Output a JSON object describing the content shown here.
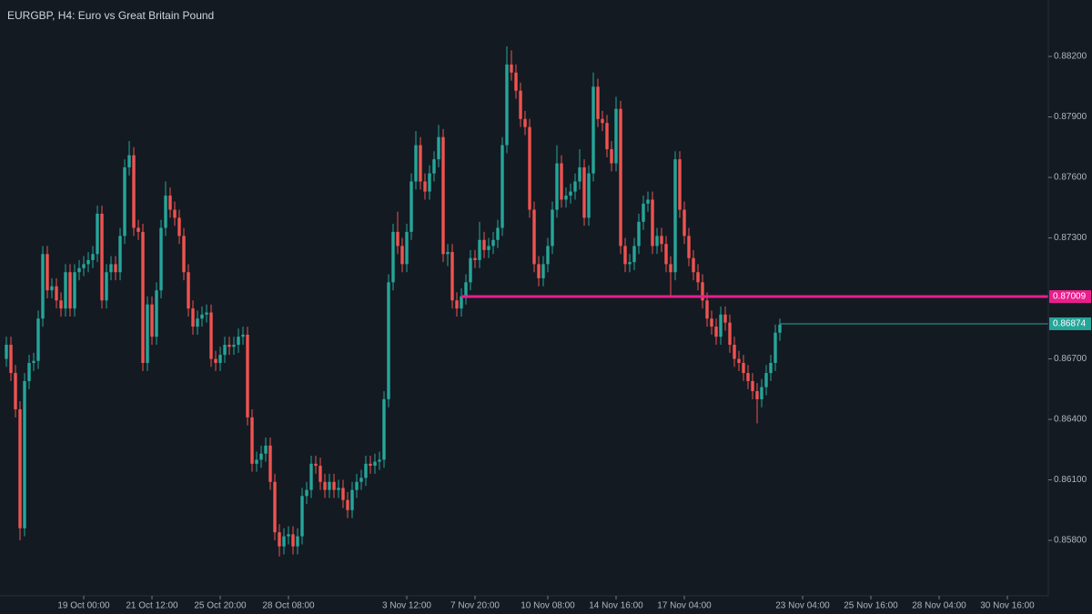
{
  "chart_data": {
    "type": "candlestick",
    "title": "EURGBP, H4: Euro vs Great Britain Pound",
    "up_color": "#26a69a",
    "down_color": "#ef5350",
    "x": [
      0,
      1,
      2,
      3,
      4,
      5,
      6,
      7,
      8,
      9,
      10,
      11,
      12,
      13,
      14,
      15,
      16,
      17,
      18,
      19,
      20,
      21,
      22,
      23,
      24,
      25,
      26,
      27,
      28,
      29,
      30,
      31,
      32,
      33,
      34,
      35,
      36,
      37,
      38,
      39,
      40,
      41,
      42,
      43,
      44,
      45,
      46,
      47,
      48,
      49,
      50,
      51,
      52,
      53,
      54,
      55,
      56,
      57,
      58,
      59,
      60,
      61,
      62,
      63,
      64,
      65,
      66,
      67,
      68,
      69,
      70,
      71,
      72,
      73,
      74,
      75,
      76,
      77,
      78,
      79,
      80,
      81,
      82,
      83,
      84,
      85,
      86,
      87,
      88,
      89,
      90,
      91,
      92,
      93,
      94,
      95,
      96,
      97,
      98,
      99,
      100,
      101,
      102,
      103,
      104,
      105,
      106,
      107,
      108,
      109,
      110,
      111,
      112,
      113,
      114,
      115,
      116,
      117,
      118,
      119,
      120,
      121,
      122,
      123,
      124,
      125,
      126,
      127,
      128,
      129,
      130,
      131,
      132,
      133,
      134,
      135,
      136,
      137,
      138,
      139,
      140,
      141,
      142,
      143,
      144,
      145,
      146,
      147,
      148,
      149,
      150,
      151,
      152,
      153,
      154,
      155,
      156,
      157,
      158,
      159,
      160,
      161,
      162,
      163,
      164,
      165,
      166,
      167,
      168,
      169,
      170
    ],
    "open": [
      0.867,
      0.8677,
      0.8663,
      0.8645,
      0.8586,
      0.8659,
      0.8668,
      0.8669,
      0.869,
      0.8722,
      0.8704,
      0.8706,
      0.8699,
      0.8695,
      0.8713,
      0.8695,
      0.8713,
      0.8715,
      0.8717,
      0.8719,
      0.8722,
      0.8742,
      0.8699,
      0.8713,
      0.8717,
      0.8713,
      0.8731,
      0.8765,
      0.8771,
      0.8735,
      0.8733,
      0.8668,
      0.8697,
      0.8681,
      0.8704,
      0.8735,
      0.8751,
      0.8744,
      0.874,
      0.8731,
      0.8713,
      0.8695,
      0.8686,
      0.869,
      0.8692,
      0.8693,
      0.867,
      0.8668,
      0.8672,
      0.8677,
      0.8676,
      0.8677,
      0.8681,
      0.8682,
      0.8641,
      0.8618,
      0.862,
      0.8623,
      0.8627,
      0.8609,
      0.8584,
      0.8577,
      0.8582,
      0.8583,
      0.8577,
      0.8582,
      0.8602,
      0.8605,
      0.8618,
      0.8617,
      0.8609,
      0.8605,
      0.8609,
      0.8605,
      0.8606,
      0.86,
      0.8595,
      0.8605,
      0.8609,
      0.8611,
      0.8618,
      0.8617,
      0.8619,
      0.862,
      0.865,
      0.8708,
      0.8733,
      0.8726,
      0.8717,
      0.8733,
      0.8758,
      0.8776,
      0.8758,
      0.8753,
      0.8762,
      0.8769,
      0.878,
      0.8722,
      0.8723,
      0.8699,
      0.8695,
      0.8701,
      0.8708,
      0.872,
      0.8719,
      0.8729,
      0.8724,
      0.8726,
      0.8729,
      0.8735,
      0.8776,
      0.8816,
      0.8812,
      0.8803,
      0.8789,
      0.8785,
      0.8744,
      0.8717,
      0.871,
      0.8717,
      0.8726,
      0.8744,
      0.8767,
      0.8749,
      0.8751,
      0.8753,
      0.8758,
      0.8765,
      0.874,
      0.8762,
      0.8805,
      0.8789,
      0.8787,
      0.8774,
      0.8767,
      0.8794,
      0.8726,
      0.8717,
      0.8718,
      0.8726,
      0.8738,
      0.8747,
      0.8749,
      0.8726,
      0.8731,
      0.8727,
      0.8717,
      0.8713,
      0.8769,
      0.8744,
      0.8731,
      0.872,
      0.8713,
      0.8708,
      0.8699,
      0.869,
      0.8686,
      0.8681,
      0.8692,
      0.8688,
      0.8677,
      0.867,
      0.8668,
      0.8663,
      0.8659,
      0.8654,
      0.865,
      0.8656,
      0.8663,
      0.8668,
      0.8683
    ],
    "high": [
      0.8681,
      0.8681,
      0.8667,
      0.8649,
      0.8663,
      0.8672,
      0.8673,
      0.8694,
      0.8726,
      0.8726,
      0.871,
      0.871,
      0.8703,
      0.8717,
      0.8717,
      0.8717,
      0.8719,
      0.8721,
      0.8723,
      0.8726,
      0.8746,
      0.8746,
      0.8717,
      0.8721,
      0.8721,
      0.8735,
      0.8769,
      0.8778,
      0.8775,
      0.8739,
      0.8737,
      0.8701,
      0.8701,
      0.8708,
      0.8739,
      0.8758,
      0.8755,
      0.8748,
      0.8744,
      0.8735,
      0.8717,
      0.8699,
      0.8694,
      0.8696,
      0.8697,
      0.8697,
      0.8674,
      0.8676,
      0.8681,
      0.8681,
      0.8681,
      0.8685,
      0.8686,
      0.8686,
      0.8645,
      0.8624,
      0.8627,
      0.8631,
      0.8631,
      0.8613,
      0.8588,
      0.8586,
      0.8587,
      0.8587,
      0.8586,
      0.8606,
      0.8609,
      0.8622,
      0.8622,
      0.8621,
      0.8613,
      0.8613,
      0.8613,
      0.861,
      0.861,
      0.8604,
      0.8609,
      0.8613,
      0.8615,
      0.8622,
      0.8622,
      0.8623,
      0.8624,
      0.8654,
      0.8712,
      0.8737,
      0.8743,
      0.873,
      0.8737,
      0.8762,
      0.8783,
      0.878,
      0.8762,
      0.8766,
      0.8773,
      0.8786,
      0.8784,
      0.8727,
      0.8727,
      0.8703,
      0.8705,
      0.8712,
      0.8724,
      0.8724,
      0.8738,
      0.8733,
      0.873,
      0.8733,
      0.8739,
      0.878,
      0.8825,
      0.8823,
      0.8816,
      0.8807,
      0.8793,
      0.8789,
      0.8748,
      0.8721,
      0.8721,
      0.873,
      0.8748,
      0.8776,
      0.8771,
      0.8755,
      0.8757,
      0.8762,
      0.8774,
      0.8769,
      0.8766,
      0.8812,
      0.8809,
      0.8793,
      0.8791,
      0.8778,
      0.88,
      0.8798,
      0.873,
      0.8722,
      0.873,
      0.8742,
      0.8751,
      0.8753,
      0.8753,
      0.8735,
      0.8735,
      0.8731,
      0.8721,
      0.8773,
      0.8773,
      0.8748,
      0.8735,
      0.8724,
      0.8717,
      0.8712,
      0.8703,
      0.8694,
      0.869,
      0.8696,
      0.8696,
      0.8692,
      0.8681,
      0.8674,
      0.8672,
      0.8667,
      0.8663,
      0.8658,
      0.866,
      0.8667,
      0.8672,
      0.8687,
      0.869
    ],
    "low": [
      0.8666,
      0.8659,
      0.8641,
      0.858,
      0.8582,
      0.8655,
      0.8664,
      0.8665,
      0.8686,
      0.87,
      0.87,
      0.8695,
      0.8691,
      0.8691,
      0.8691,
      0.8691,
      0.8709,
      0.8711,
      0.8713,
      0.8715,
      0.8718,
      0.8695,
      0.8695,
      0.8709,
      0.8709,
      0.8709,
      0.8727,
      0.8761,
      0.8731,
      0.8729,
      0.8664,
      0.8664,
      0.8677,
      0.8677,
      0.87,
      0.8731,
      0.874,
      0.8736,
      0.8727,
      0.8709,
      0.8691,
      0.8682,
      0.8682,
      0.8686,
      0.8688,
      0.8666,
      0.8664,
      0.8664,
      0.8668,
      0.8672,
      0.8672,
      0.8673,
      0.8677,
      0.8637,
      0.8614,
      0.8614,
      0.8616,
      0.8619,
      0.8605,
      0.858,
      0.8572,
      0.8573,
      0.8578,
      0.8573,
      0.8573,
      0.8578,
      0.8598,
      0.8601,
      0.8613,
      0.8605,
      0.8601,
      0.8601,
      0.8601,
      0.8601,
      0.8596,
      0.8591,
      0.8591,
      0.8601,
      0.8605,
      0.8607,
      0.8613,
      0.8613,
      0.8615,
      0.8616,
      0.8646,
      0.8704,
      0.8722,
      0.8713,
      0.8713,
      0.8729,
      0.8754,
      0.8754,
      0.8749,
      0.8749,
      0.8758,
      0.8765,
      0.8718,
      0.8716,
      0.8695,
      0.8691,
      0.8691,
      0.8697,
      0.8704,
      0.8715,
      0.8715,
      0.872,
      0.872,
      0.8722,
      0.8725,
      0.8731,
      0.8772,
      0.8808,
      0.8799,
      0.8785,
      0.8781,
      0.874,
      0.8713,
      0.8706,
      0.8706,
      0.8713,
      0.8722,
      0.874,
      0.8745,
      0.8745,
      0.8747,
      0.8749,
      0.8754,
      0.8736,
      0.8736,
      0.8758,
      0.8785,
      0.8783,
      0.877,
      0.8763,
      0.8763,
      0.8722,
      0.8713,
      0.8713,
      0.8714,
      0.8722,
      0.8734,
      0.8743,
      0.8722,
      0.8722,
      0.8723,
      0.8713,
      0.8701,
      0.8709,
      0.874,
      0.8727,
      0.8716,
      0.8709,
      0.8704,
      0.8695,
      0.8686,
      0.8682,
      0.8677,
      0.8677,
      0.8684,
      0.8673,
      0.8666,
      0.8664,
      0.8659,
      0.8655,
      0.865,
      0.8638,
      0.8646,
      0.8652,
      0.8659,
      0.8664,
      0.8679
    ],
    "close": [
      0.8677,
      0.8663,
      0.8645,
      0.8586,
      0.8659,
      0.8668,
      0.8669,
      0.869,
      0.8722,
      0.8704,
      0.8706,
      0.8699,
      0.8695,
      0.8713,
      0.8695,
      0.8713,
      0.8715,
      0.8717,
      0.8719,
      0.8722,
      0.8742,
      0.8699,
      0.8713,
      0.8717,
      0.8713,
      0.8731,
      0.8765,
      0.8771,
      0.8735,
      0.8733,
      0.8668,
      0.8697,
      0.8681,
      0.8704,
      0.8735,
      0.8751,
      0.8744,
      0.874,
      0.8731,
      0.8713,
      0.8695,
      0.8686,
      0.869,
      0.8692,
      0.8693,
      0.867,
      0.8668,
      0.8672,
      0.8677,
      0.8676,
      0.8677,
      0.8681,
      0.8682,
      0.8641,
      0.8618,
      0.862,
      0.8623,
      0.8627,
      0.8609,
      0.8584,
      0.8577,
      0.8582,
      0.8583,
      0.8577,
      0.8582,
      0.8602,
      0.8605,
      0.8618,
      0.8617,
      0.8609,
      0.8605,
      0.8609,
      0.8605,
      0.8606,
      0.86,
      0.8595,
      0.8605,
      0.8609,
      0.8611,
      0.8618,
      0.8617,
      0.8619,
      0.862,
      0.865,
      0.8708,
      0.8733,
      0.8726,
      0.8717,
      0.8733,
      0.8758,
      0.8776,
      0.8758,
      0.8753,
      0.8762,
      0.8769,
      0.878,
      0.8722,
      0.8723,
      0.8699,
      0.8695,
      0.8701,
      0.8708,
      0.872,
      0.8719,
      0.8729,
      0.8724,
      0.8726,
      0.8729,
      0.8735,
      0.8776,
      0.8816,
      0.8812,
      0.8803,
      0.8789,
      0.8785,
      0.8744,
      0.8717,
      0.871,
      0.8717,
      0.8726,
      0.8744,
      0.8767,
      0.8749,
      0.8751,
      0.8753,
      0.8758,
      0.8765,
      0.874,
      0.8762,
      0.8805,
      0.8789,
      0.8787,
      0.8774,
      0.8767,
      0.8794,
      0.8726,
      0.8717,
      0.8718,
      0.8726,
      0.8738,
      0.8747,
      0.8749,
      0.8726,
      0.8731,
      0.8727,
      0.8717,
      0.8713,
      0.8769,
      0.8744,
      0.8731,
      0.872,
      0.8713,
      0.8708,
      0.8699,
      0.869,
      0.8686,
      0.8681,
      0.8692,
      0.8688,
      0.8677,
      0.867,
      0.8668,
      0.8663,
      0.8659,
      0.8654,
      0.865,
      0.8656,
      0.8663,
      0.8668,
      0.8683,
      0.8687
    ],
    "xlim": [
      -1.4,
      228.6
    ],
    "xticks": [
      {
        "value": 17,
        "label": "19 Oct 00:00"
      },
      {
        "value": 32,
        "label": "21 Oct 12:00"
      },
      {
        "value": 47,
        "label": "25 Oct 20:00"
      },
      {
        "value": 62,
        "label": "28 Oct 08:00"
      },
      {
        "value": 88,
        "label": "3 Nov 12:00"
      },
      {
        "value": 103,
        "label": "7 Nov 20:00"
      },
      {
        "value": 119,
        "label": "10 Nov 08:00"
      },
      {
        "value": 134,
        "label": "14 Nov 16:00"
      },
      {
        "value": 149,
        "label": "17 Nov 04:00"
      },
      {
        "value": 175,
        "label": "23 Nov 04:00"
      },
      {
        "value": 190,
        "label": "25 Nov 16:00"
      },
      {
        "value": 205,
        "label": "28 Nov 04:00"
      },
      {
        "value": 220,
        "label": "30 Nov 16:00"
      }
    ],
    "ylim": [
      0.85525,
      0.8848
    ],
    "yticks": [
      {
        "value": 0.858,
        "label": "0.85800"
      },
      {
        "value": 0.861,
        "label": "0.86100"
      },
      {
        "value": 0.864,
        "label": "0.86400"
      },
      {
        "value": 0.867,
        "label": "0.86700"
      },
      {
        "value": 0.873,
        "label": "0.87300"
      },
      {
        "value": 0.876,
        "label": "0.87600"
      },
      {
        "value": 0.879,
        "label": "0.87900"
      },
      {
        "value": 0.882,
        "label": "0.88200"
      }
    ],
    "levels": [
      {
        "value": 0.87009,
        "color": "#e91e8c",
        "from_x": 100,
        "width": 3
      },
      {
        "value": 0.86874,
        "color": "#26a69a",
        "from_x": 170,
        "width": 1
      }
    ]
  }
}
